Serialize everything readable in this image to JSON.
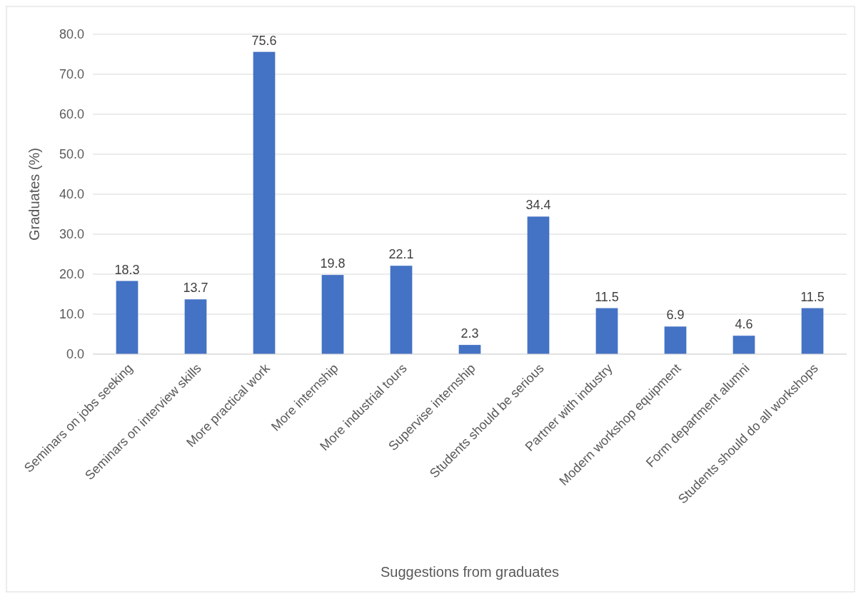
{
  "chart_data": {
    "type": "bar",
    "xlabel": "Suggestions from graduates",
    "ylabel": "Graduates (%)",
    "categories": [
      "Seminars on jobs seeking",
      "Seminars on interview skills",
      "More practical work",
      "More internship",
      "More industrial tours",
      "Supervise internship",
      "Students should be serious",
      "Partner with industry",
      "Modern workshop equipment",
      "Form department alumni",
      "Students should do all workshops"
    ],
    "values": [
      18.3,
      13.7,
      75.6,
      19.8,
      22.1,
      2.3,
      34.4,
      11.5,
      6.9,
      4.6,
      11.5
    ],
    "color": "#4472c4",
    "ylim": [
      0,
      80
    ],
    "yticks": [
      {
        "value": 0,
        "label": "0.0"
      },
      {
        "value": 10,
        "label": "10.0"
      },
      {
        "value": 20,
        "label": "20.0"
      },
      {
        "value": 30,
        "label": "30.0"
      },
      {
        "value": 40,
        "label": "40.0"
      },
      {
        "value": 50,
        "label": "50.0"
      },
      {
        "value": 60,
        "label": "60.0"
      },
      {
        "value": 70,
        "label": "70.0"
      },
      {
        "value": 80,
        "label": "80.0"
      }
    ],
    "grid": "y",
    "data_labels": true
  }
}
